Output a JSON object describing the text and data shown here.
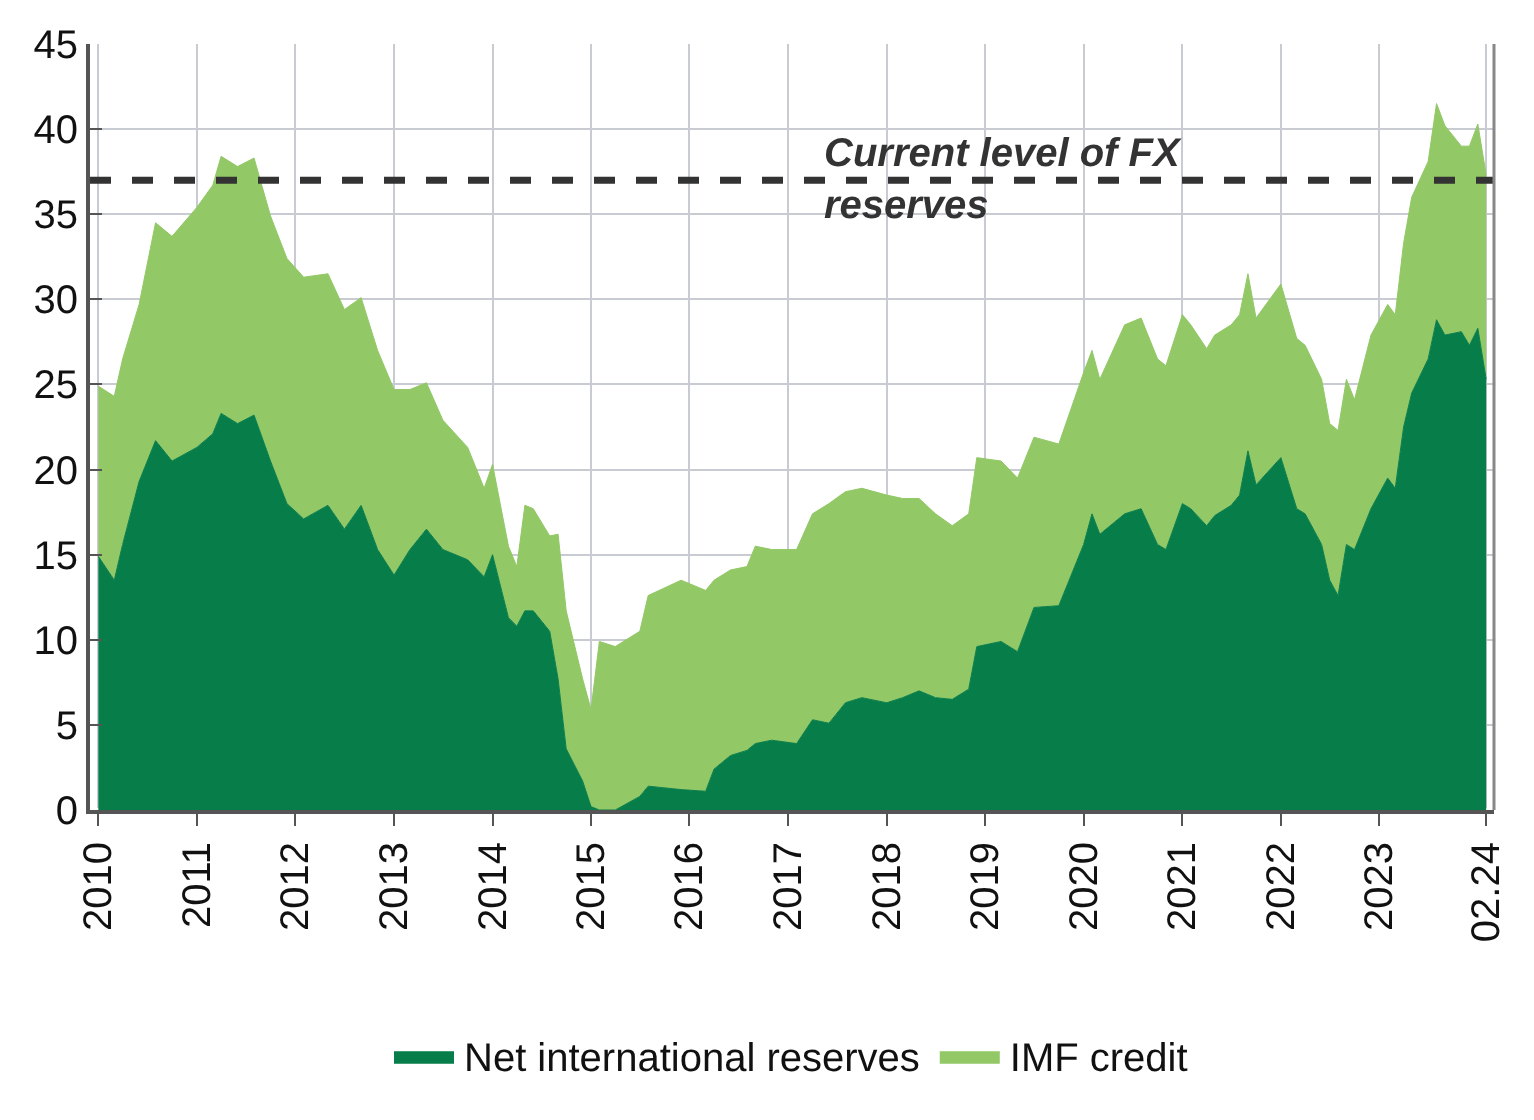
{
  "chart_data": {
    "type": "area",
    "stacked": true,
    "x": [
      "2010-01",
      "2010-03",
      "2010-04",
      "2010-06",
      "2010-08",
      "2010-10",
      "2011-01",
      "2011-03",
      "2011-04",
      "2011-06",
      "2011-08",
      "2011-10",
      "2011-12",
      "2012-02",
      "2012-05",
      "2012-07",
      "2012-09",
      "2012-11",
      "2013-01",
      "2013-03",
      "2013-05",
      "2013-07",
      "2013-10",
      "2013-12",
      "2014-01",
      "2014-03",
      "2014-04",
      "2014-05",
      "2014-06",
      "2014-08",
      "2014-09",
      "2014-10",
      "2014-12",
      "2015-01",
      "2015-02",
      "2015-04",
      "2015-07",
      "2015-08",
      "2015-12",
      "2016-03",
      "2016-04",
      "2016-06",
      "2016-08",
      "2016-09",
      "2016-11",
      "2017-02",
      "2017-04",
      "2017-06",
      "2017-08",
      "2017-10",
      "2018-01",
      "2018-03",
      "2018-05",
      "2018-07",
      "2018-09",
      "2018-11",
      "2018-12",
      "2019-03",
      "2019-05",
      "2019-07",
      "2019-10",
      "2020-01",
      "2020-02",
      "2020-03",
      "2020-06",
      "2020-08",
      "2020-10",
      "2020-11",
      "2021-01",
      "2021-02",
      "2021-04",
      "2021-05",
      "2021-07",
      "2021-08",
      "2021-09",
      "2021-10",
      "2022-01",
      "2022-03",
      "2022-04",
      "2022-06",
      "2022-07",
      "2022-08",
      "2022-09",
      "2022-10",
      "2022-12",
      "2023-02",
      "2023-03",
      "2023-04",
      "2023-05",
      "2023-07",
      "2023-08",
      "2023-09",
      "2023-11",
      "2023-12",
      "2024-01",
      "2024-02"
    ],
    "series": [
      {
        "name": "Net international reserves",
        "color": "#077d4a",
        "values": [
          14.9,
          13.5,
          15.6,
          19.3,
          21.7,
          20.5,
          21.3,
          22.1,
          23.3,
          22.7,
          23.2,
          20.5,
          18.0,
          17.1,
          17.9,
          16.5,
          17.9,
          15.3,
          13.8,
          15.3,
          16.5,
          15.3,
          14.7,
          13.7,
          15.0,
          11.3,
          10.8,
          11.7,
          11.7,
          10.5,
          7.7,
          3.6,
          1.7,
          0.2,
          0,
          0,
          0.8,
          1.4,
          1.2,
          1.1,
          2.4,
          3.2,
          3.5,
          3.9,
          4.1,
          3.9,
          5.3,
          5.1,
          6.3,
          6.6,
          6.3,
          6.6,
          7.0,
          6.6,
          6.5,
          7.1,
          9.6,
          9.9,
          9.3,
          11.9,
          12.0,
          15.6,
          17.4,
          16.2,
          17.4,
          17.7,
          15.6,
          15.3,
          18.0,
          17.7,
          16.7,
          17.3,
          17.9,
          18.5,
          21.1,
          19.1,
          20.7,
          17.7,
          17.4,
          15.6,
          13.5,
          12.6,
          15.6,
          15.3,
          17.7,
          19.5,
          18.9,
          22.5,
          24.5,
          26.5,
          28.8,
          27.9,
          28.1,
          27.3,
          28.3,
          25.3
        ]
      },
      {
        "name": "IMF credit",
        "color": "#92c866",
        "values": [
          10.0,
          10.8,
          10.9,
          10.4,
          12.8,
          13.2,
          14.1,
          14.6,
          15.1,
          15.1,
          15.1,
          14.4,
          14.4,
          14.2,
          13.6,
          12.9,
          12.2,
          11.7,
          10.9,
          9.4,
          8.6,
          7.6,
          6.6,
          5.2,
          5.3,
          4.2,
          3.5,
          6.2,
          6.0,
          5.6,
          8.5,
          8.1,
          6.0,
          5.7,
          9.9,
          9.6,
          9.7,
          11.2,
          12.3,
          11.8,
          11.1,
          10.9,
          10.8,
          11.6,
          11.2,
          11.4,
          12.1,
          12.9,
          12.4,
          12.3,
          12.2,
          11.7,
          11.3,
          10.8,
          10.2,
          10.3,
          11.1,
          10.6,
          10.2,
          10.0,
          9.5,
          10.1,
          9.6,
          9.1,
          11.1,
          11.2,
          10.9,
          10.8,
          11.1,
          10.8,
          10.4,
          10.6,
          10.6,
          10.6,
          10.4,
          9.8,
          10.2,
          10.0,
          9.9,
          9.7,
          9.2,
          9.7,
          9.7,
          8.8,
          10.2,
          10.2,
          10.2,
          10.8,
          11.5,
          11.6,
          12.7,
          12.3,
          10.9,
          11.7,
          12.0,
          12.0
        ]
      }
    ],
    "xlim": [
      "2009-12-01",
      "2024-03-01"
    ],
    "xticks": [
      {
        "value": "2010-01",
        "label": "2010"
      },
      {
        "value": "2011-01",
        "label": "2011"
      },
      {
        "value": "2012-01",
        "label": "2012"
      },
      {
        "value": "2013-01",
        "label": "2013"
      },
      {
        "value": "2014-01",
        "label": "2014"
      },
      {
        "value": "2015-01",
        "label": "2015"
      },
      {
        "value": "2016-01",
        "label": "2016"
      },
      {
        "value": "2017-01",
        "label": "2017"
      },
      {
        "value": "2018-01",
        "label": "2018"
      },
      {
        "value": "2019-01",
        "label": "2019"
      },
      {
        "value": "2020-01",
        "label": "2020"
      },
      {
        "value": "2021-01",
        "label": "2021"
      },
      {
        "value": "2022-01",
        "label": "2022"
      },
      {
        "value": "2023-01",
        "label": "2023"
      },
      {
        "value": "2024-02",
        "label": "02.24"
      }
    ],
    "ylim": [
      0,
      45
    ],
    "yticks": [
      0,
      5,
      10,
      15,
      20,
      25,
      30,
      35,
      40,
      45
    ],
    "ref_lines": [
      {
        "axis": "y",
        "value": 37,
        "label": "Current level of FX reserves",
        "color": "#333333",
        "line_style": "dashed"
      }
    ],
    "grid": true,
    "legend": "bottom"
  }
}
